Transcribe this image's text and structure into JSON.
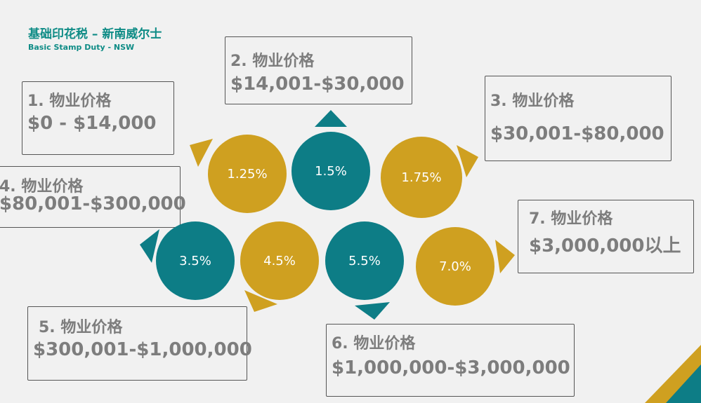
{
  "header": {
    "title_zh": "基础印花税 – 新南威尔士",
    "title_en": "Basic Stamp Duty - NSW"
  },
  "tiers": [
    {
      "label": "1. 物业价格",
      "range": "$0 - $14,000",
      "rate": "1.25%"
    },
    {
      "label": "2. 物业价格",
      "range": "$14,001-$30,000",
      "rate": "1.5%"
    },
    {
      "label": "3. 物业价格",
      "range": "$30,001-$80,000",
      "rate": "1.75%"
    },
    {
      "label": "4. 物业价格",
      "range": "$80,001-$300,000",
      "rate": "3.5%"
    },
    {
      "label": "5. 物业价格",
      "range": "$300,001-$1,000,000",
      "rate": "4.5%"
    },
    {
      "label": "6. 物业价格",
      "range": "$1,000,000-$3,000,000",
      "rate": "5.5%"
    },
    {
      "label": "7. 物业价格",
      "range": "$3,000,000以上",
      "rate": "7.0%"
    }
  ],
  "colors": {
    "gold": "#cfa020",
    "teal": "#0d7d86",
    "box_text": "#7d7d7d",
    "title": "#0f8c86"
  }
}
